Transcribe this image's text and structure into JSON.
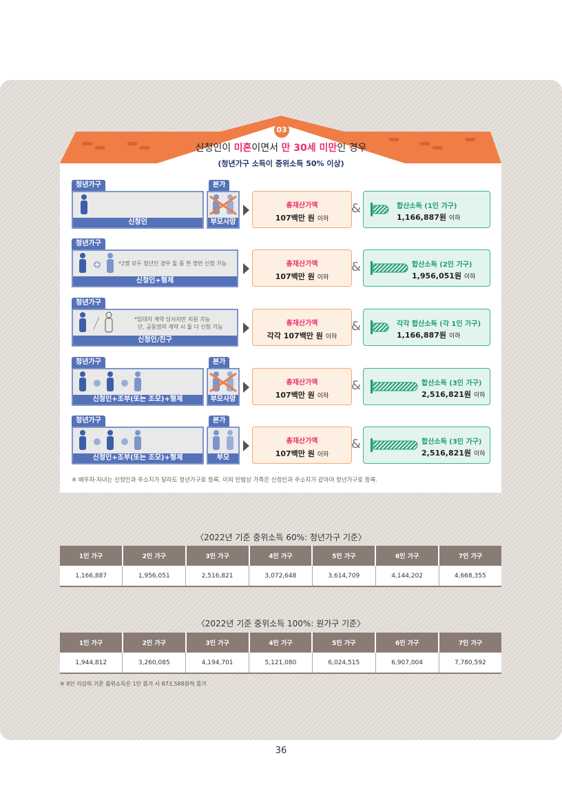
{
  "section": {
    "badge": "03",
    "title_pre": "신청인이 ",
    "title_hl1": "미혼",
    "title_mid": "이면서 ",
    "title_hl2": "만 30세 미만",
    "title_post": "인 경우",
    "subtitle": "(청년가구 소득이 중위소득 50% 이상)"
  },
  "rows": [
    {
      "tab": "청년가구",
      "label": "신청인",
      "note": "",
      "parent_tab": "본가",
      "parent_label": "부모사망",
      "asset_title": "총재산가액",
      "asset_value": "107백만 원",
      "asset_suffix": "이하",
      "income_title": "합산소득 (1인 가구)",
      "income_value": "1,166,887원",
      "income_suffix": "이하"
    },
    {
      "tab": "청년가구",
      "label": "신청인+형제",
      "note": "*2명 모두 청년인 경우 둘 중 한 명만 신청 가능",
      "asset_title": "총재산가액",
      "asset_value": "107백만 원",
      "asset_suffix": "이하",
      "income_title": "합산소득 (2인 가구)",
      "income_value": "1,956,051원",
      "income_suffix": "이하"
    },
    {
      "tab": "청년가구",
      "label": "신청인/친구",
      "note": "*임대차 계약 당사자만 지원 가능",
      "note2": "단, 공동명의 계약 시 둘 다 신청 가능",
      "asset_title": "총재산가액",
      "asset_value": "각각 107백만 원",
      "asset_suffix": "이하",
      "income_title": "각각 합산소득 (각 1인 가구)",
      "income_value": "1,166,887원",
      "income_suffix": "이하"
    },
    {
      "tab": "청년가구",
      "label": "신청인+조부(또는 조모)+형제",
      "parent_tab": "본가",
      "parent_label": "부모사망",
      "asset_title": "총재산가액",
      "asset_value": "107백만 원",
      "asset_suffix": "이하",
      "income_title": "합산소득 (3인 가구)",
      "income_value": "2,516,821원",
      "income_suffix": "이하"
    },
    {
      "tab": "청년가구",
      "label": "신청인+조부(또는 조모)+형제",
      "parent_tab": "본가",
      "parent_label": "부모",
      "asset_title": "총재산가액",
      "asset_value": "107백만 원",
      "asset_suffix": "이하",
      "income_title": "합산소득 (3인 가구)",
      "income_value": "2,516,821원",
      "income_suffix": "이하"
    }
  ],
  "card_note": "※ 배우자·자녀는 신청인과 주소지가 달라도 청년가구로 등록. 이외 민법상 가족은 신청인과 주소지가 같아야 청년가구로 등록.",
  "amp": "&",
  "table1": {
    "caption": "〈2022년 기준 중위소득 60%: 청년가구 기준〉",
    "headers": [
      "1인 가구",
      "2인 가구",
      "3인 가구",
      "4인 가구",
      "5인 가구",
      "6인 가구",
      "7인 가구"
    ],
    "values": [
      "1,166,887",
      "1,956,051",
      "2,516,821",
      "3,072,648",
      "3,614,709",
      "4,144,202",
      "4,668,355"
    ]
  },
  "table2": {
    "caption": "〈2022년 기준 중위소득 100%: 원가구 기준〉",
    "headers": [
      "1인 가구",
      "2인 가구",
      "3인 가구",
      "4인 가구",
      "5인 가구",
      "6인 가구",
      "7인 가구"
    ],
    "values": [
      "1,944,812",
      "3,260,085",
      "4,194,701",
      "5,121,080",
      "6,024,515",
      "6,907,004",
      "7,780,592"
    ]
  },
  "table_note": "※ 8인 이상의 기준 중위소득은 1인 증가 시 873,588원씩 증가",
  "page_number": "36",
  "colors": {
    "accent_orange": "#ef7d45",
    "accent_pink": "#e8326a",
    "blue": "#5572b8",
    "green": "#37b58d",
    "table_header": "#8a7b75"
  }
}
